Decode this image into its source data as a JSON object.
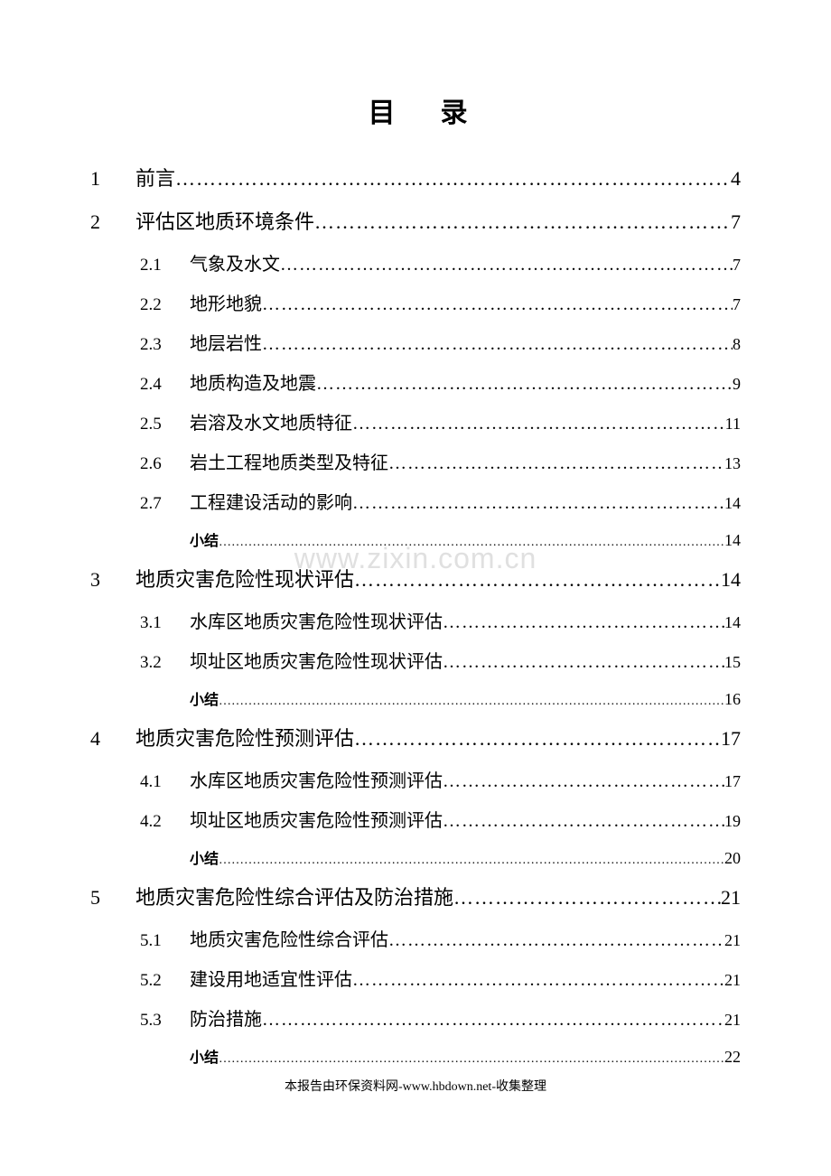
{
  "title": "目录",
  "watermark": "www.zixin.com.cn",
  "footer": "本报告由环保资料网-www.hbdown.net-收集整理",
  "toc": {
    "ch1": {
      "num": "1",
      "label": "前言",
      "page": "4"
    },
    "ch2": {
      "num": "2",
      "label": "评估区地质环境条件",
      "page": "7",
      "subs": {
        "s1": {
          "num": "2.1",
          "label": "气象及水文",
          "page": "7"
        },
        "s2": {
          "num": "2.2",
          "label": "地形地貌",
          "page": "7"
        },
        "s3": {
          "num": "2.3",
          "label": "地层岩性",
          "page": "8"
        },
        "s4": {
          "num": "2.4",
          "label": "地质构造及地震",
          "page": "9"
        },
        "s5": {
          "num": "2.5",
          "label": "岩溶及水文地质特征",
          "page": "11"
        },
        "s6": {
          "num": "2.6",
          "label": "岩土工程地质类型及特征",
          "page": "13"
        },
        "s7": {
          "num": "2.7",
          "label": "工程建设活动的影响",
          "page": "14"
        }
      },
      "summary": {
        "label": "小结",
        "page": "14"
      }
    },
    "ch3": {
      "num": "3",
      "label": "地质灾害危险性现状评估",
      "page": "14",
      "subs": {
        "s1": {
          "num": "3.1",
          "label": "水库区地质灾害危险性现状评估",
          "page": "14"
        },
        "s2": {
          "num": "3.2",
          "label": "坝址区地质灾害危险性现状评估",
          "page": "15"
        }
      },
      "summary": {
        "label": "小结",
        "page": "16"
      }
    },
    "ch4": {
      "num": "4",
      "label": "地质灾害危险性预测评估",
      "page": "17",
      "subs": {
        "s1": {
          "num": "4.1",
          "label": "水库区地质灾害危险性预测评估",
          "page": "17"
        },
        "s2": {
          "num": "4.2",
          "label": "坝址区地质灾害危险性预测评估",
          "page": "19"
        }
      },
      "summary": {
        "label": "小结",
        "page": "20"
      }
    },
    "ch5": {
      "num": "5",
      "label": "地质灾害危险性综合评估及防治措施",
      "page": " 21",
      "subs": {
        "s1": {
          "num": "5.1",
          "label": "地质灾害危险性综合评估",
          "page": "21"
        },
        "s2": {
          "num": "5.2",
          "label": "建设用地适宜性评估",
          "page": "21"
        },
        "s3": {
          "num": "5.3",
          "label": "防治措施",
          "page": "21"
        }
      },
      "summary": {
        "label": "小结",
        "page": "22"
      }
    }
  }
}
